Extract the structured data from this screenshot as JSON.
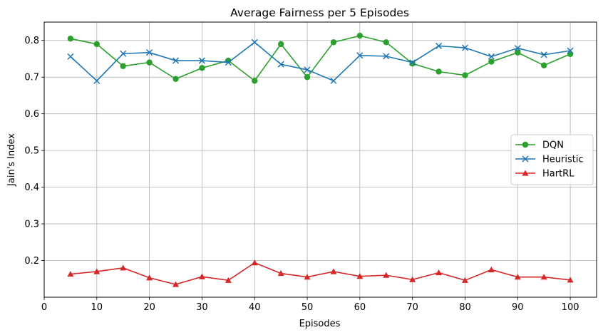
{
  "chart_data": {
    "type": "line",
    "title": "Average Fairness per 5 Episodes",
    "xlabel": "Episodes",
    "ylabel": "Jain's Index",
    "xlim": [
      0,
      105
    ],
    "ylim": [
      0.1,
      0.85
    ],
    "xticks": [
      0,
      10,
      20,
      30,
      40,
      50,
      60,
      70,
      80,
      90,
      100
    ],
    "yticks": [
      0.2,
      0.3,
      0.4,
      0.5,
      0.6,
      0.7,
      0.8
    ],
    "grid": true,
    "legend_position": "center-right",
    "x": [
      5,
      10,
      15,
      20,
      25,
      30,
      35,
      40,
      45,
      50,
      55,
      60,
      65,
      70,
      75,
      80,
      85,
      90,
      95,
      100
    ],
    "series": [
      {
        "name": "DQN",
        "color": "#2ca02c",
        "marker": "circle",
        "values": [
          0.805,
          0.79,
          0.73,
          0.74,
          0.695,
          0.725,
          0.745,
          0.69,
          0.79,
          0.7,
          0.795,
          0.813,
          0.795,
          0.737,
          0.715,
          0.705,
          0.742,
          0.767,
          0.732,
          0.763
        ]
      },
      {
        "name": "Heuristic",
        "color": "#1f77b4",
        "marker": "x",
        "values": [
          0.756,
          0.69,
          0.764,
          0.767,
          0.745,
          0.745,
          0.74,
          0.795,
          0.735,
          0.72,
          0.69,
          0.759,
          0.757,
          0.74,
          0.785,
          0.78,
          0.756,
          0.779,
          0.761,
          0.772
        ]
      },
      {
        "name": "HartRL",
        "color": "#d62728",
        "marker": "triangle",
        "values": [
          0.163,
          0.17,
          0.18,
          0.153,
          0.135,
          0.156,
          0.146,
          0.194,
          0.165,
          0.155,
          0.17,
          0.157,
          0.16,
          0.148,
          0.167,
          0.146,
          0.175,
          0.155,
          0.155,
          0.147
        ]
      }
    ]
  }
}
